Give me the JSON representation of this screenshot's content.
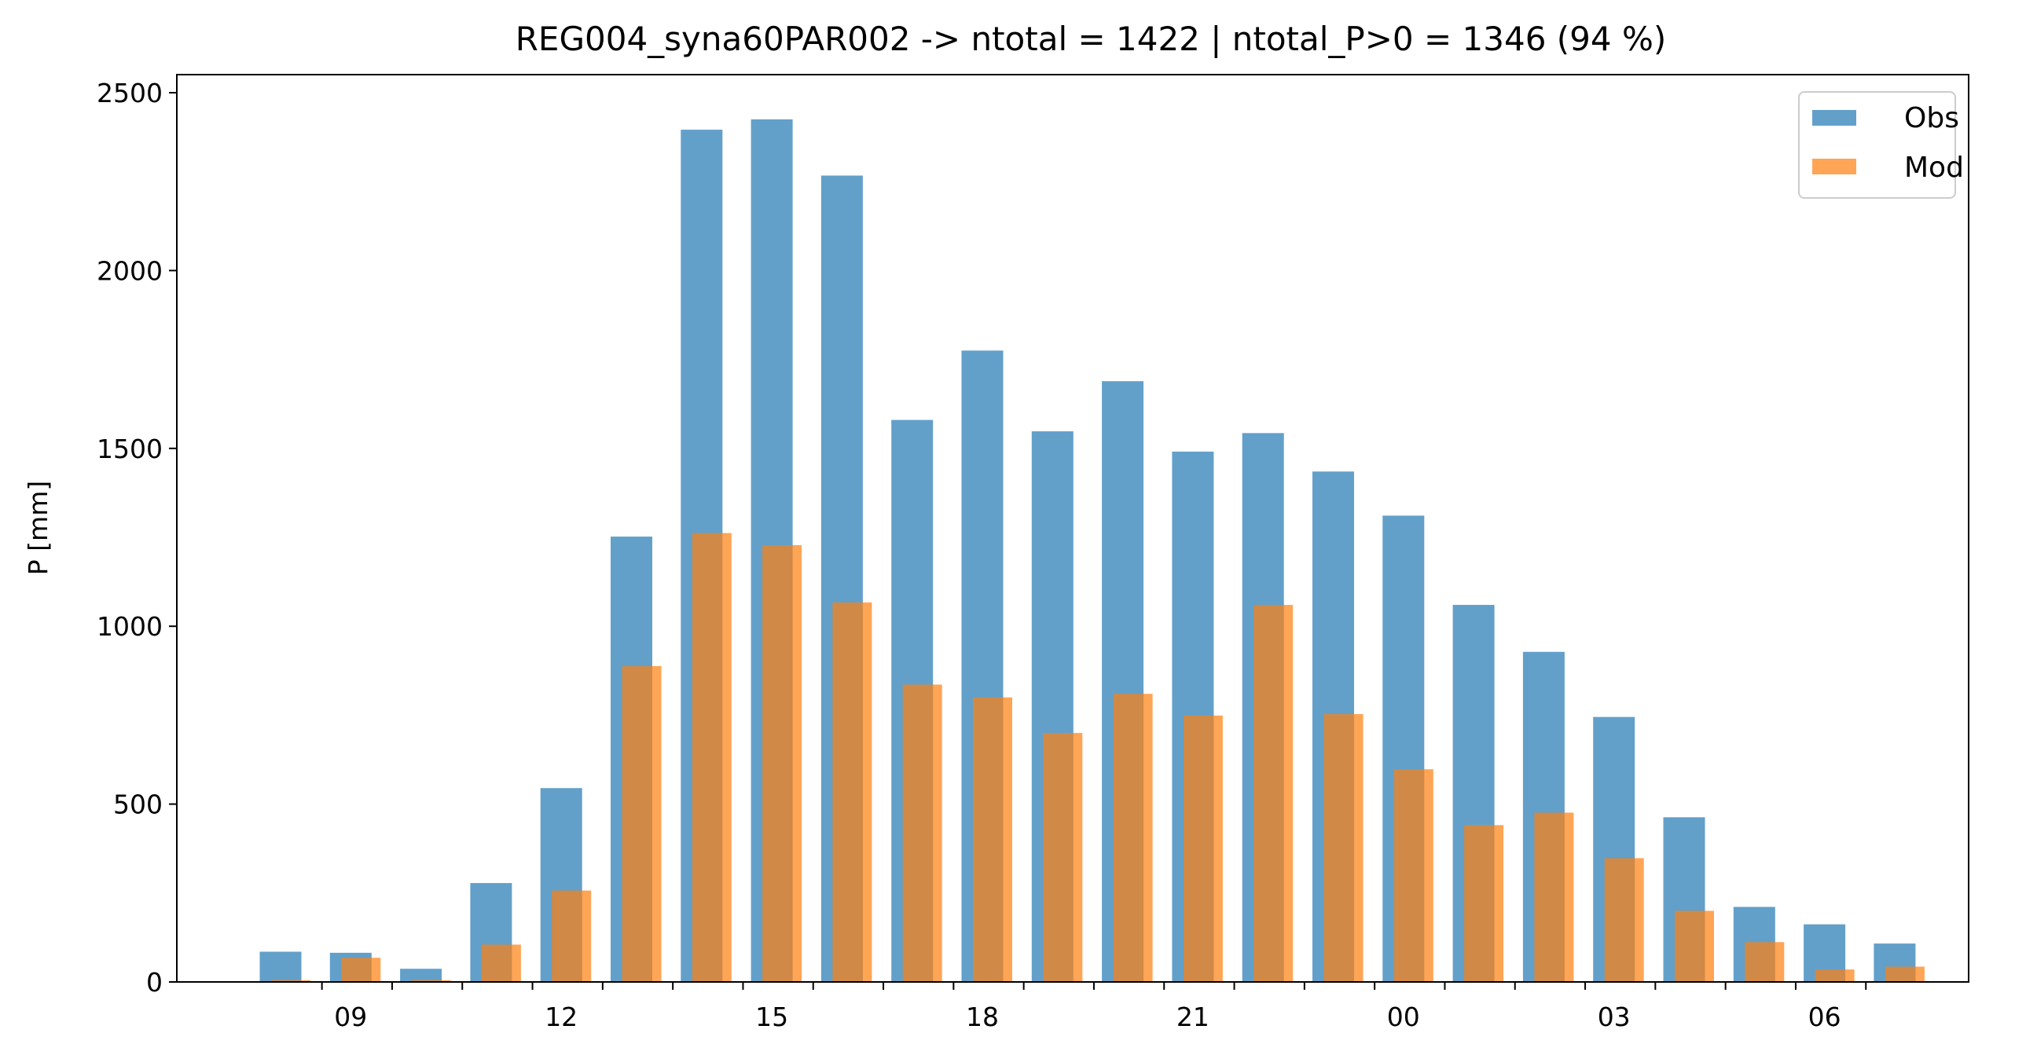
{
  "chart_data": {
    "type": "bar",
    "title": "REG004_syna60PAR002 -> ntotal = 1422 | ntotal_P>0 = 1346 (94 %)",
    "xlabel": "",
    "ylabel": "P [mm]",
    "ylim": [
      0,
      2550
    ],
    "yticks": [
      0,
      500,
      1000,
      1500,
      2000,
      2500
    ],
    "hours": [
      8,
      9,
      10,
      11,
      12,
      13,
      14,
      15,
      16,
      17,
      18,
      19,
      20,
      21,
      22,
      23,
      0,
      1,
      2,
      3,
      4,
      5,
      6,
      7
    ],
    "xtick_labels": [
      "09",
      "12",
      "15",
      "18",
      "21",
      "00",
      "03",
      "06"
    ],
    "series": [
      {
        "name": "Obs",
        "color": "#1f77b4",
        "opacity": 0.7,
        "values": [
          85,
          82,
          37,
          278,
          545,
          1252,
          2396,
          2425,
          2267,
          1580,
          1775,
          1548,
          1689,
          1491,
          1543,
          1435,
          1311,
          1060,
          928,
          745,
          463,
          211,
          162,
          108
        ]
      },
      {
        "name": "Mod",
        "color": "#ff7f0e",
        "opacity": 0.7,
        "values": [
          5,
          68,
          5,
          105,
          257,
          888,
          1262,
          1228,
          1067,
          836,
          800,
          700,
          810,
          749,
          1060,
          753,
          598,
          441,
          476,
          348,
          200,
          112,
          35,
          43
        ]
      }
    ],
    "grid": false,
    "legend_position": "top-right"
  }
}
